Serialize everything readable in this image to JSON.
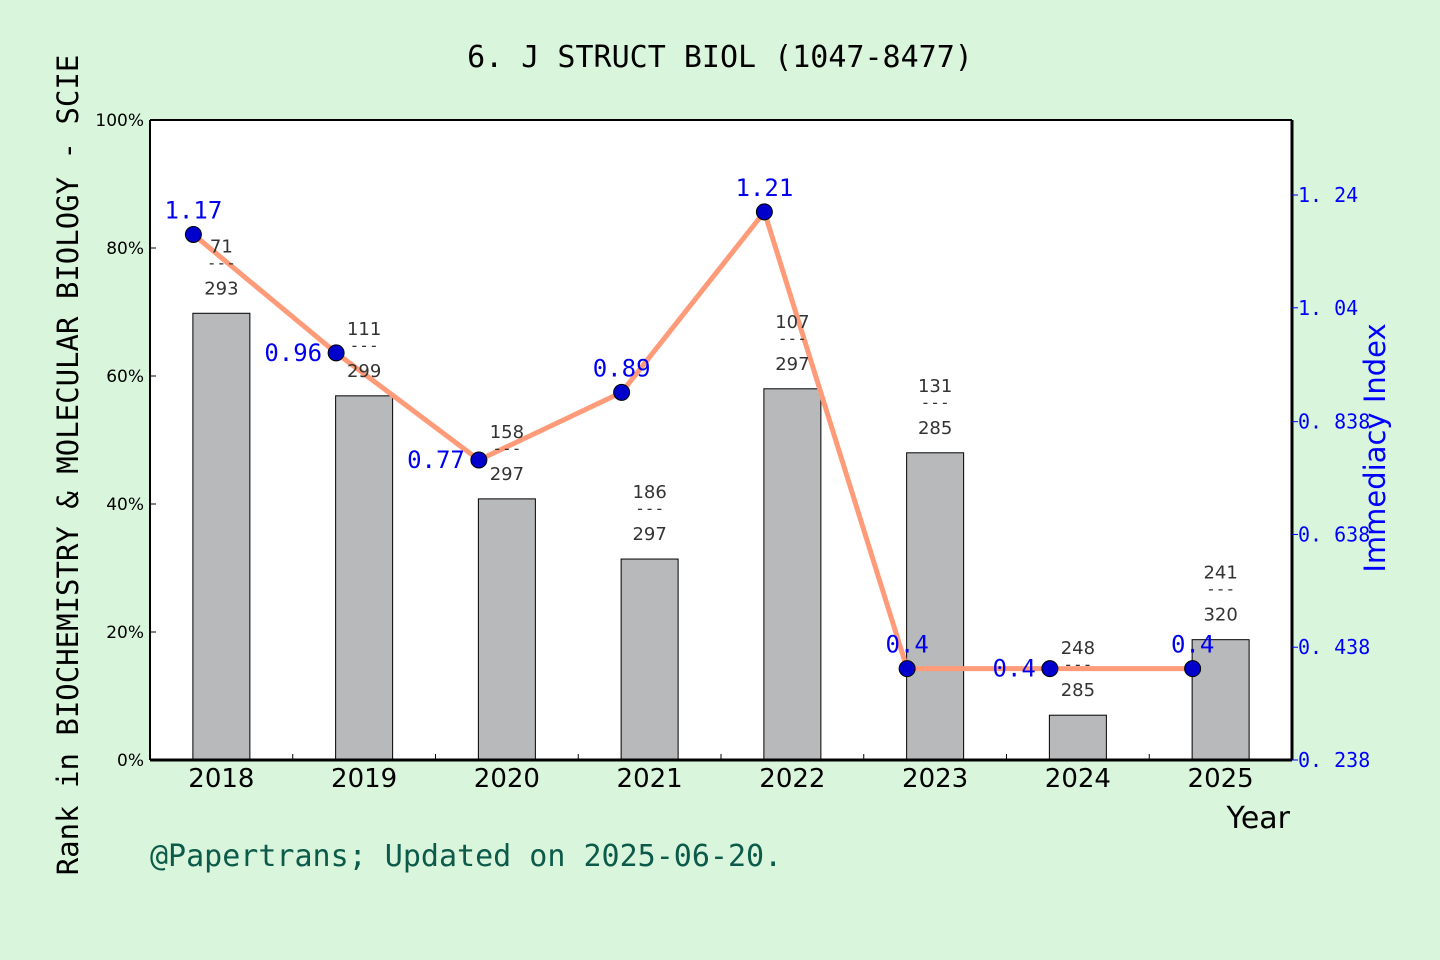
{
  "chart_data": {
    "type": "bar+line",
    "title": "6. J STRUCT BIOL (1047-8477)",
    "xlabel": "Year",
    "ylabel_left": "Rank in BIOCHEMISTRY & MOLECULAR BIOLOGY - SCIE",
    "ylabel_right": "Immediacy Index",
    "categories": [
      "2018",
      "2019",
      "2020",
      "2021",
      "2022",
      "2023",
      "2024",
      "2025"
    ],
    "left_ticks": [
      "0%",
      "20%",
      "40%",
      "60%",
      "80%",
      "100%"
    ],
    "left_ylim": [
      0,
      100
    ],
    "right_ticks": [
      "0.238",
      "0.438",
      "0.638",
      "0.838",
      "1.04",
      "1.24"
    ],
    "right_ylim": [
      0.238,
      1.373
    ],
    "bars": {
      "values": [
        69.8,
        56.9,
        40.8,
        31.4,
        58,
        48,
        7,
        18.8
      ],
      "color": "#b8b9bb"
    },
    "rank_labels": [
      {
        "rank": "71",
        "total": "293"
      },
      {
        "rank": "111",
        "total": "299"
      },
      {
        "rank": "158",
        "total": "297"
      },
      {
        "rank": "186",
        "total": "297"
      },
      {
        "rank": "107",
        "total": "297"
      },
      {
        "rank": "131",
        "total": "285"
      },
      {
        "rank": "248",
        "total": "285"
      },
      {
        "rank": "241",
        "total": "320"
      }
    ],
    "line": {
      "values": [
        1.17,
        0.96,
        0.77,
        0.89,
        1.21,
        0.4,
        0.4,
        0.4
      ],
      "labels": [
        "1.17",
        "0.96",
        "0.77",
        "0.89",
        "1.21",
        "0.4",
        "0.4",
        "0.4"
      ],
      "color": "#ff9b78",
      "marker_color": "#0000cc"
    },
    "grid": false
  },
  "footer": "@Papertrans; Updated on 2025-06-20.",
  "colors": {
    "background": "#d9f5dc",
    "right_axis": "#0000ff",
    "footer": "#0b5a4a"
  }
}
